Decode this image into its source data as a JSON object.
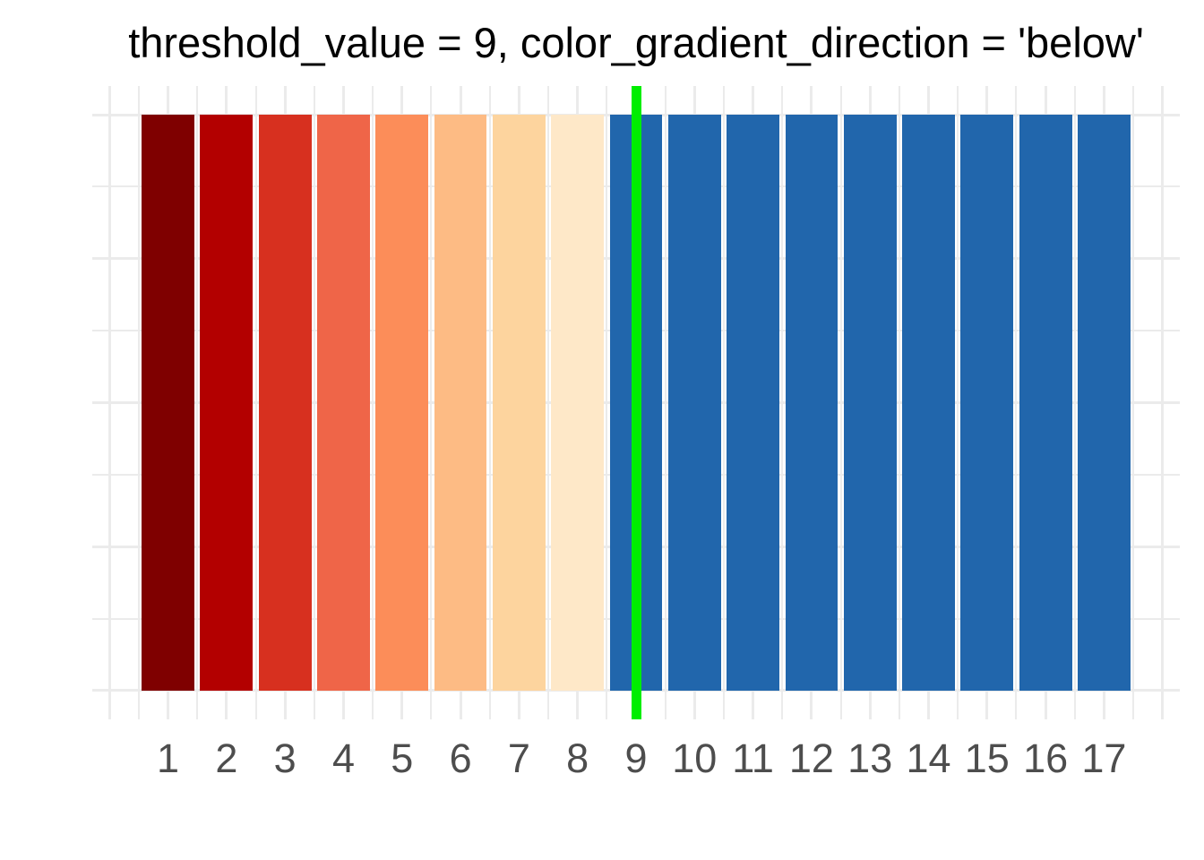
{
  "chart_data": {
    "type": "bar",
    "title": "threshold_value = 9, color_gradient_direction = 'below'",
    "xlabel": "",
    "ylabel": "",
    "categories": [
      1,
      2,
      3,
      4,
      5,
      6,
      7,
      8,
      9,
      10,
      11,
      12,
      13,
      14,
      15,
      16,
      17
    ],
    "x_tick_labels": [
      "1",
      "2",
      "3",
      "4",
      "5",
      "6",
      "7",
      "8",
      "9",
      "10",
      "11",
      "12",
      "13",
      "14",
      "15",
      "16",
      "17"
    ],
    "values": [
      1,
      1,
      1,
      1,
      1,
      1,
      1,
      1,
      1,
      1,
      1,
      1,
      1,
      1,
      1,
      1,
      1
    ],
    "bar_colors": [
      "#7F0000",
      "#B30000",
      "#D7301F",
      "#EF6548",
      "#FC8D59",
      "#FDBB84",
      "#FDD49E",
      "#FEE8C8",
      "#2166AC",
      "#2166AC",
      "#2166AC",
      "#2166AC",
      "#2166AC",
      "#2166AC",
      "#2166AC",
      "#2166AC",
      "#2166AC"
    ],
    "threshold": {
      "value": 9,
      "direction": "below",
      "line_color": "#00EE00",
      "line_width": 11
    },
    "xlim": [
      -0.295,
      18.295
    ],
    "ylim": [
      -0.05,
      1.05
    ],
    "bar_width_units": 0.9,
    "grid": {
      "on": true,
      "color": "#EBEBEB",
      "v_step": 0.5,
      "v_range": [
        0,
        18
      ],
      "h_major_step": 0.25,
      "h_minor_step": 0.125,
      "h_range": [
        0,
        1
      ]
    },
    "legend": "none",
    "styles": {
      "background": "#FFFFFF",
      "title_color": "#000000",
      "axis_text_color": "#4D4D4D"
    }
  }
}
